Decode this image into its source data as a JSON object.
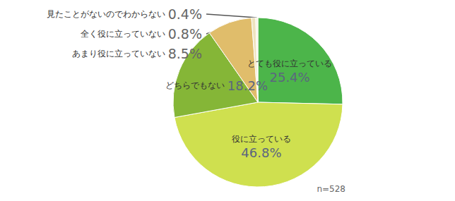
{
  "chart_data": {
    "type": "pie",
    "categories": [
      "とても役に立っている",
      "役に立っている",
      "どちらでもない",
      "あまり役に立っていない",
      "全く役に立っていない",
      "見たことがないのでわからない"
    ],
    "values": [
      25.4,
      46.8,
      18.2,
      8.5,
      0.8,
      0.4
    ],
    "value_labels": [
      "25.4%",
      "46.8%",
      "18.2%",
      "8.5%",
      "0.8%",
      "0.4%"
    ],
    "colors": [
      "#4cb54a",
      "#cfe04f",
      "#85b637",
      "#e0bd6b",
      "#eee3bf",
      "#f6f1e2"
    ],
    "data_labels": true,
    "annotation": "n=528"
  }
}
